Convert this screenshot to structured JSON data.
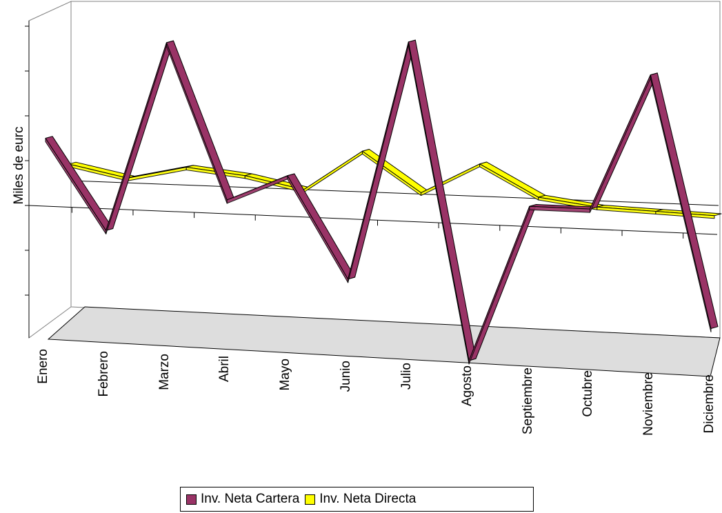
{
  "chart_data": {
    "type": "line",
    "title": "",
    "xlabel": "",
    "ylabel": "Miles de eurc",
    "categories": [
      "Enero",
      "Febrero",
      "Marzo",
      "Abril",
      "Mayo",
      "Junio",
      "Julio",
      "Agosto",
      "Septiembre",
      "Octubre",
      "Noviembre",
      "Diciembre"
    ],
    "series": [
      {
        "name": "Inv. Neta Cartera",
        "color": "#993366",
        "values": [
          3.0,
          -1.0,
          7.5,
          0.6,
          1.8,
          -2.7,
          8.0,
          -6.1,
          0.9,
          0.9,
          7.0,
          -4.2
        ]
      },
      {
        "name": "Inv. Neta Directa",
        "color": "#ffff00",
        "values": [
          1.3,
          0.5,
          1.5,
          1.1,
          0.3,
          3.3,
          0.5,
          2.8,
          0.6,
          0.1,
          0.0,
          -0.1
        ]
      }
    ],
    "ylim": [
      -7,
      9
    ],
    "grid": false,
    "legend_position": "bottom",
    "style": "3d line"
  },
  "legend": {
    "items": [
      {
        "label": "Inv. Neta Cartera",
        "color": "#993366"
      },
      {
        "label": "Inv. Neta Directa",
        "color": "#ffff00"
      }
    ]
  }
}
